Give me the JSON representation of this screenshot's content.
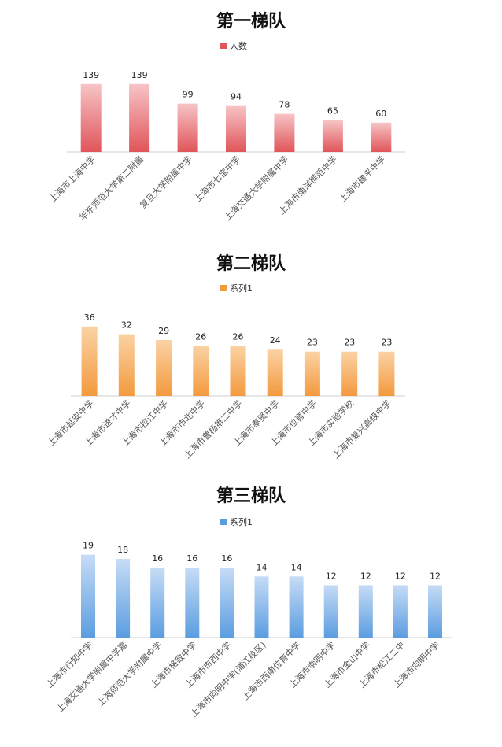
{
  "chart_data": [
    {
      "type": "bar",
      "title": "第一梯队",
      "series": [
        {
          "name": "人数",
          "color": "#e0555a",
          "light": "#f7c4c6"
        }
      ],
      "categories": [
        "上海市上海中学",
        "华东师范大学第二附属",
        "复旦大学附属中学",
        "上海市七宝中学",
        "上海交通大学附属中学",
        "上海市南洋模范中学",
        "上海市建平中学"
      ],
      "values": [
        139,
        139,
        99,
        94,
        78,
        65,
        60
      ],
      "ylim": [
        0,
        150
      ],
      "grid": false,
      "legend": "top"
    },
    {
      "type": "bar",
      "title": "第二梯队",
      "series": [
        {
          "name": "系列1",
          "color": "#f39a3e",
          "light": "#fbd2a4"
        }
      ],
      "categories": [
        "上海市延安中学",
        "上海市进才中学",
        "上海市控江中学",
        "上海市市北中学",
        "上海市曹杨第二中学",
        "上海市奉贤中学",
        "上海市位育中学",
        "上海市实验学校",
        "上海市复兴高级中学"
      ],
      "values": [
        36,
        32,
        29,
        26,
        26,
        24,
        23,
        23,
        23
      ],
      "ylim": [
        0,
        40
      ],
      "grid": false,
      "legend": "top"
    },
    {
      "type": "bar",
      "title": "第三梯队",
      "series": [
        {
          "name": "系列1",
          "color": "#5b9de0",
          "light": "#c6dcf6"
        }
      ],
      "categories": [
        "上海市行知中学",
        "上海交通大学附属中学嘉",
        "上海师范大学附属中学",
        "上海市格致中学",
        "上海市市西中学",
        "上海市向明中学(浦江校区)",
        "上海市西南位育中学",
        "上海市崇明中学",
        "上海市金山中学",
        "上海市松江二中",
        "上海市向明中学"
      ],
      "values": [
        19,
        18,
        16,
        16,
        16,
        14,
        14,
        12,
        12,
        12,
        12
      ],
      "ylim": [
        0,
        20
      ],
      "grid": false,
      "legend": "top"
    }
  ]
}
